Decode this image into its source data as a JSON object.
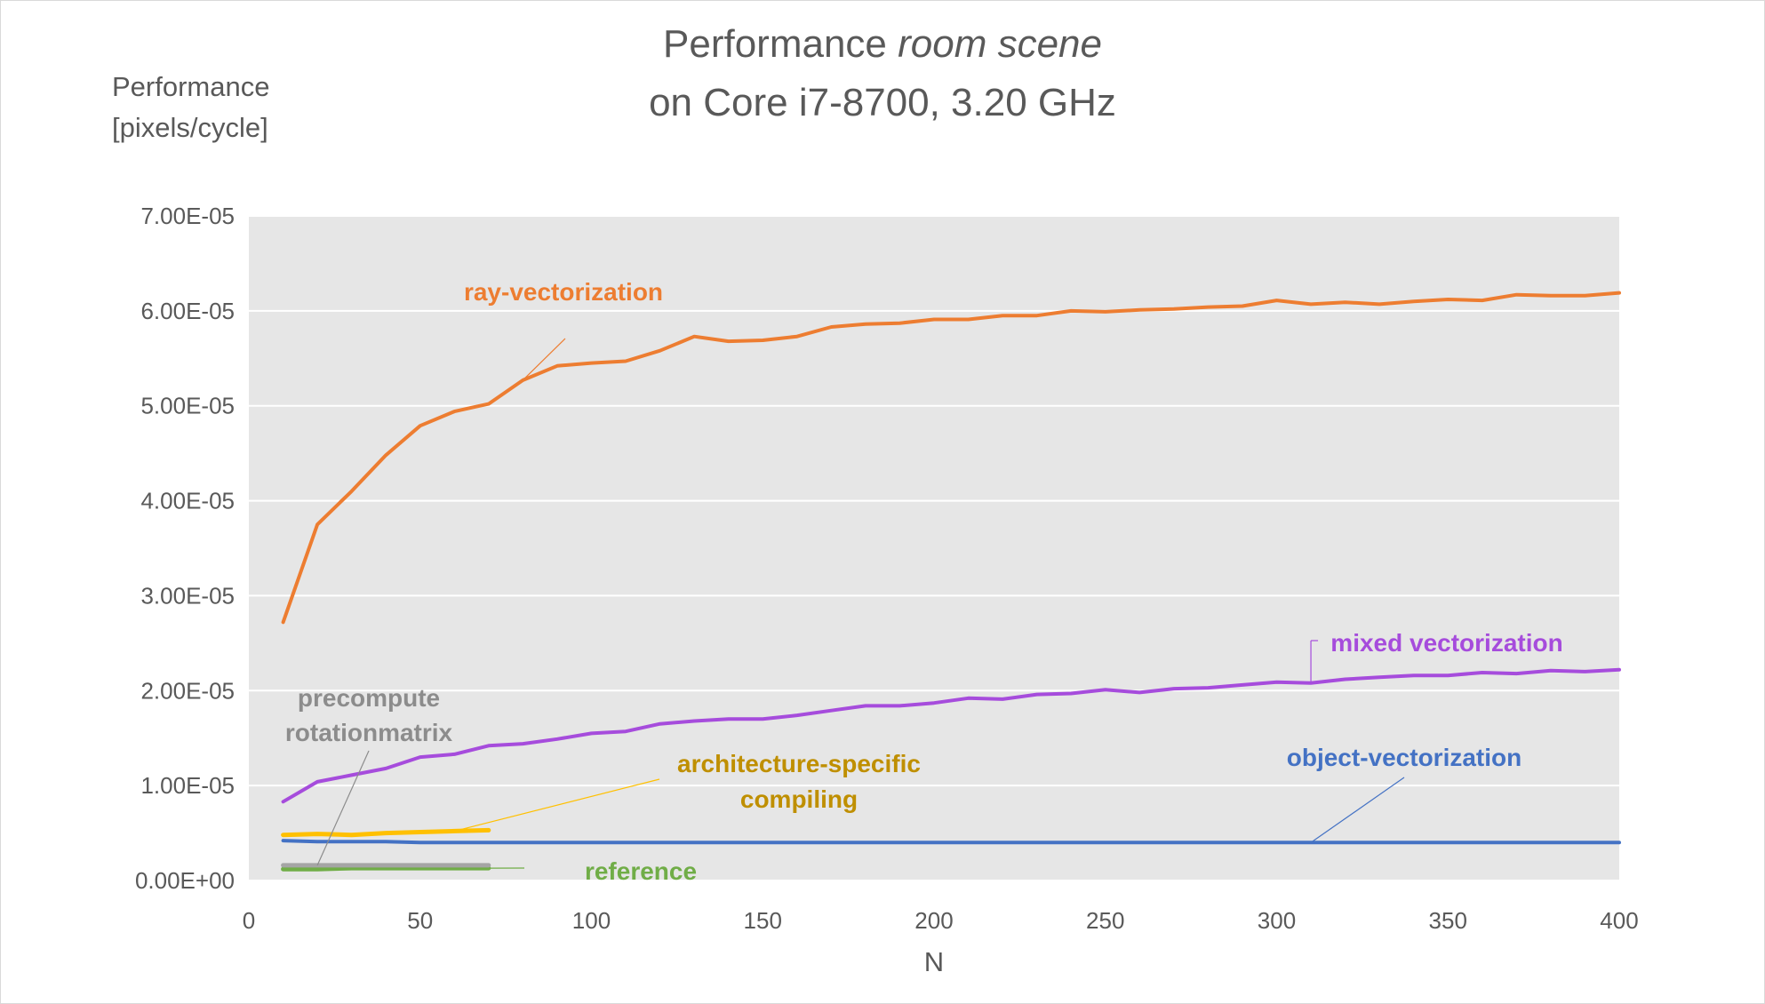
{
  "chart_data": {
    "type": "line",
    "title_main": "Performance ",
    "title_italic": "room scene",
    "subtitle": "on Core i7-8700, 3.20 GHz",
    "ylabel_line1": "Performance",
    "ylabel_line2": "[pixels/cycle]",
    "xlabel": "N",
    "xlim": [
      0,
      400
    ],
    "ylim": [
      0,
      7e-05
    ],
    "x_ticks": [
      0,
      50,
      100,
      150,
      200,
      250,
      300,
      350,
      400
    ],
    "y_ticks": [
      0,
      1e-05,
      2e-05,
      3e-05,
      4e-05,
      5e-05,
      6e-05,
      7e-05
    ],
    "y_tick_labels": [
      "0.00E+00",
      "1.00E-05",
      "2.00E-05",
      "3.00E-05",
      "4.00E-05",
      "5.00E-05",
      "6.00E-05",
      "7.00E-05"
    ],
    "grid": true,
    "plot_background": "#e6e6e6",
    "series": [
      {
        "name": "ray-vectorization",
        "color": "#ed7d31",
        "label_color": "#ed7d31",
        "x": [
          10,
          20,
          30,
          40,
          50,
          60,
          70,
          80,
          90,
          100,
          110,
          120,
          130,
          140,
          150,
          160,
          170,
          180,
          190,
          200,
          210,
          220,
          230,
          240,
          250,
          260,
          270,
          280,
          290,
          300,
          310,
          320,
          330,
          340,
          350,
          360,
          370,
          380,
          390,
          400
        ],
        "y": [
          2.72e-05,
          3.75e-05,
          4.1e-05,
          4.48e-05,
          4.79e-05,
          4.94e-05,
          5.02e-05,
          5.27e-05,
          5.42e-05,
          5.45e-05,
          5.47e-05,
          5.58e-05,
          5.73e-05,
          5.68e-05,
          5.69e-05,
          5.73e-05,
          5.83e-05,
          5.86e-05,
          5.87e-05,
          5.91e-05,
          5.91e-05,
          5.95e-05,
          5.95e-05,
          6e-05,
          5.99e-05,
          6.01e-05,
          6.02e-05,
          6.04e-05,
          6.05e-05,
          6.11e-05,
          6.07e-05,
          6.09e-05,
          6.07e-05,
          6.1e-05,
          6.12e-05,
          6.11e-05,
          6.17e-05,
          6.16e-05,
          6.16e-05,
          6.19e-05
        ]
      },
      {
        "name": "mixed vectorization",
        "color": "#a64cdc",
        "label_color": "#a64cdc",
        "x": [
          10,
          20,
          30,
          40,
          50,
          60,
          70,
          80,
          90,
          100,
          110,
          120,
          130,
          140,
          150,
          160,
          170,
          180,
          190,
          200,
          210,
          220,
          230,
          240,
          250,
          260,
          270,
          280,
          290,
          300,
          310,
          320,
          330,
          340,
          350,
          360,
          370,
          380,
          390,
          400
        ],
        "y": [
          8.3e-06,
          1.04e-05,
          1.11e-05,
          1.18e-05,
          1.3e-05,
          1.33e-05,
          1.42e-05,
          1.44e-05,
          1.49e-05,
          1.55e-05,
          1.57e-05,
          1.65e-05,
          1.68e-05,
          1.7e-05,
          1.7e-05,
          1.74e-05,
          1.79e-05,
          1.84e-05,
          1.84e-05,
          1.87e-05,
          1.92e-05,
          1.91e-05,
          1.96e-05,
          1.97e-05,
          2.01e-05,
          1.98e-05,
          2.02e-05,
          2.03e-05,
          2.06e-05,
          2.09e-05,
          2.08e-05,
          2.12e-05,
          2.14e-05,
          2.16e-05,
          2.16e-05,
          2.19e-05,
          2.18e-05,
          2.21e-05,
          2.2e-05,
          2.22e-05
        ]
      },
      {
        "name": "object-vectorization",
        "color": "#4472c4",
        "label_color": "#4472c4",
        "x": [
          10,
          20,
          30,
          40,
          50,
          60,
          70,
          80,
          90,
          100,
          150,
          200,
          250,
          300,
          350,
          400
        ],
        "y": [
          4.2e-06,
          4.1e-06,
          4.1e-06,
          4.1e-06,
          4e-06,
          4e-06,
          4e-06,
          4e-06,
          4e-06,
          4e-06,
          4e-06,
          4e-06,
          4e-06,
          4e-06,
          4e-06,
          4e-06
        ]
      },
      {
        "name": "architecture-specific compiling",
        "label_line1": "architecture-specific",
        "label_line2": "compiling",
        "color": "#ffc000",
        "label_color": "#bf8f00",
        "x": [
          10,
          20,
          30,
          40,
          50,
          60,
          70
        ],
        "y": [
          4.8e-06,
          4.9e-06,
          4.8e-06,
          5e-06,
          5.1e-06,
          5.2e-06,
          5.3e-06
        ]
      },
      {
        "name": "precompute rotationmatrix",
        "label_line1": "precompute",
        "label_line2": "rotationmatrix",
        "color": "#a5a5a5",
        "label_color": "#8c8c8c",
        "x": [
          10,
          20,
          30,
          40,
          50,
          60,
          70
        ],
        "y": [
          1.6e-06,
          1.6e-06,
          1.6e-06,
          1.6e-06,
          1.6e-06,
          1.6e-06,
          1.6e-06
        ]
      },
      {
        "name": "reference",
        "color": "#70ad47",
        "label_color": "#70ad47",
        "x": [
          10,
          20,
          30,
          40,
          50,
          60,
          70
        ],
        "y": [
          1.2e-06,
          1.2e-06,
          1.3e-06,
          1.3e-06,
          1.3e-06,
          1.3e-06,
          1.3e-06
        ]
      }
    ]
  }
}
